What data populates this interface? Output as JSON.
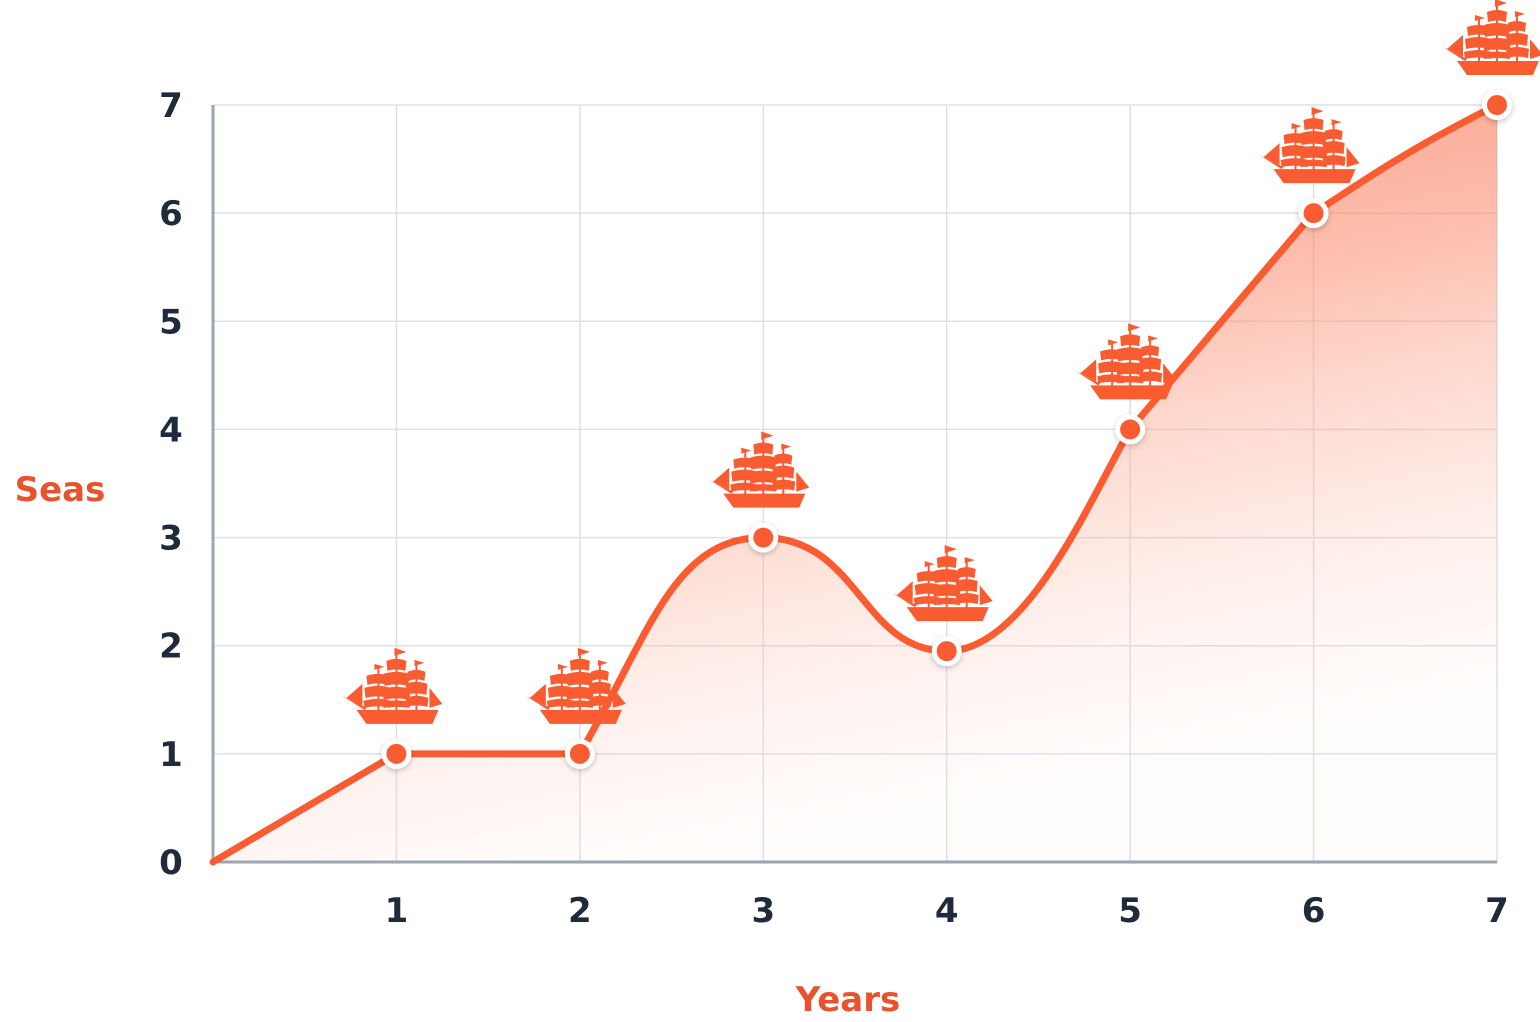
{
  "chart_data": {
    "type": "area",
    "xlabel": "Years",
    "ylabel": "Seas",
    "x": [
      0,
      1,
      2,
      3,
      4,
      5,
      6,
      7
    ],
    "y": [
      0,
      1,
      1,
      3,
      1.95,
      4,
      6,
      7
    ],
    "xticks": [
      "1",
      "2",
      "3",
      "4",
      "5",
      "6",
      "7"
    ],
    "yticks": [
      "0",
      "1",
      "2",
      "3",
      "4",
      "5",
      "6",
      "7"
    ],
    "xlim": [
      0,
      7
    ],
    "ylim": [
      0,
      7
    ],
    "grid": true,
    "curve": "smooth",
    "marker_icon": "ship-icon",
    "colors": {
      "accent": "#fa5c32",
      "axis_title": "#e8532e",
      "tick_label": "#1f2b3a",
      "fill": "#fb8a6c"
    }
  }
}
